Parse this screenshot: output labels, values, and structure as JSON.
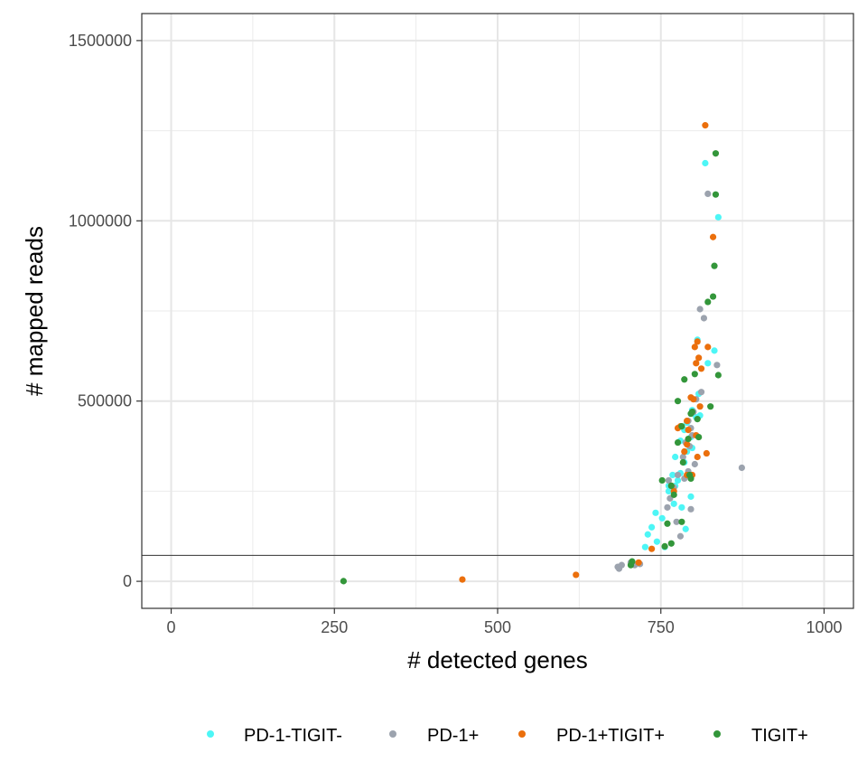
{
  "chart_data": {
    "type": "scatter",
    "title": "",
    "xlabel": "# detected genes",
    "ylabel": "# mapped reads",
    "xlim": [
      -45,
      1045
    ],
    "ylim": [
      -75000,
      1575000
    ],
    "x_ticks": [
      0,
      250,
      500,
      750,
      1000
    ],
    "x_tick_labels": [
      "0",
      "250",
      "500",
      "750",
      "1000"
    ],
    "y_ticks": [
      0,
      500000,
      1000000,
      1500000
    ],
    "y_tick_labels": [
      "0",
      "500000",
      "1000000",
      "1500000"
    ],
    "grid": true,
    "legend_position": "bottom",
    "hline": {
      "y": 72000,
      "color": "#333333"
    },
    "series": [
      {
        "name": "PD-1-TIGIT-",
        "color": "#4DF6F6",
        "points": [
          [
            818,
            1160000
          ],
          [
            838,
            1010000
          ],
          [
            832,
            640000
          ],
          [
            806,
            670000
          ],
          [
            822,
            605000
          ],
          [
            808,
            520000
          ],
          [
            798,
            475000
          ],
          [
            804,
            455000
          ],
          [
            786,
            420000
          ],
          [
            796,
            400000
          ],
          [
            780,
            390000
          ],
          [
            790,
            360000
          ],
          [
            798,
            370000
          ],
          [
            786,
            330000
          ],
          [
            780,
            300000
          ],
          [
            768,
            295000
          ],
          [
            776,
            280000
          ],
          [
            772,
            265000
          ],
          [
            762,
            250000
          ],
          [
            796,
            235000
          ],
          [
            770,
            215000
          ],
          [
            782,
            205000
          ],
          [
            742,
            190000
          ],
          [
            752,
            175000
          ],
          [
            736,
            150000
          ],
          [
            788,
            145000
          ],
          [
            730,
            130000
          ],
          [
            744,
            110000
          ],
          [
            726,
            95000
          ],
          [
            756,
            95000
          ],
          [
            762,
            265000
          ],
          [
            772,
            345000
          ],
          [
            810,
            460000
          ],
          [
            790,
            440000
          ]
        ]
      },
      {
        "name": "PD-1+",
        "color": "#9CA3AE",
        "points": [
          [
            822,
            1075000
          ],
          [
            810,
            755000
          ],
          [
            816,
            730000
          ],
          [
            836,
            600000
          ],
          [
            812,
            525000
          ],
          [
            804,
            505000
          ],
          [
            800,
            470000
          ],
          [
            792,
            445000
          ],
          [
            798,
            405000
          ],
          [
            788,
            385000
          ],
          [
            794,
            375000
          ],
          [
            784,
            345000
          ],
          [
            802,
            325000
          ],
          [
            792,
            305000
          ],
          [
            776,
            295000
          ],
          [
            786,
            285000
          ],
          [
            770,
            260000
          ],
          [
            764,
            230000
          ],
          [
            760,
            205000
          ],
          [
            796,
            200000
          ],
          [
            774,
            165000
          ],
          [
            780,
            125000
          ],
          [
            874,
            315000
          ],
          [
            684,
            40000
          ],
          [
            690,
            45000
          ],
          [
            686,
            35000
          ],
          [
            718,
            48000
          ],
          [
            704,
            52000
          ],
          [
            710,
            45000
          ],
          [
            762,
            280000
          ],
          [
            796,
            425000
          ]
        ]
      },
      {
        "name": "PD-1+TIGIT+",
        "color": "#EB6F0C",
        "points": [
          [
            818,
            1265000
          ],
          [
            830,
            955000
          ],
          [
            806,
            665000
          ],
          [
            822,
            650000
          ],
          [
            802,
            650000
          ],
          [
            808,
            620000
          ],
          [
            804,
            605000
          ],
          [
            812,
            590000
          ],
          [
            796,
            510000
          ],
          [
            800,
            505000
          ],
          [
            810,
            485000
          ],
          [
            790,
            445000
          ],
          [
            780,
            430000
          ],
          [
            776,
            425000
          ],
          [
            792,
            420000
          ],
          [
            804,
            405000
          ],
          [
            790,
            380000
          ],
          [
            786,
            360000
          ],
          [
            820,
            355000
          ],
          [
            806,
            345000
          ],
          [
            798,
            295000
          ],
          [
            790,
            295000
          ],
          [
            766,
            265000
          ],
          [
            770,
            250000
          ],
          [
            736,
            90000
          ],
          [
            446,
            5000
          ],
          [
            620,
            18000
          ],
          [
            716,
            52000
          ]
        ]
      },
      {
        "name": "TIGIT+",
        "color": "#33963A",
        "points": [
          [
            834,
            1187000
          ],
          [
            834,
            1073000
          ],
          [
            832,
            875000
          ],
          [
            830,
            790000
          ],
          [
            822,
            775000
          ],
          [
            838,
            572000
          ],
          [
            802,
            575000
          ],
          [
            786,
            560000
          ],
          [
            776,
            500000
          ],
          [
            826,
            485000
          ],
          [
            806,
            450000
          ],
          [
            798,
            470000
          ],
          [
            782,
            430000
          ],
          [
            792,
            395000
          ],
          [
            808,
            400000
          ],
          [
            776,
            385000
          ],
          [
            784,
            330000
          ],
          [
            796,
            285000
          ],
          [
            752,
            280000
          ],
          [
            766,
            265000
          ],
          [
            770,
            240000
          ],
          [
            760,
            160000
          ],
          [
            766,
            105000
          ],
          [
            782,
            165000
          ],
          [
            756,
            97000
          ],
          [
            706,
            55000
          ],
          [
            704,
            45000
          ],
          [
            264,
            500
          ],
          [
            794,
            295000
          ],
          [
            796,
            465000
          ]
        ]
      }
    ]
  },
  "legend": {
    "items": [
      {
        "label": "PD-1-TIGIT-",
        "color": "#4DF6F6"
      },
      {
        "label": "PD-1+",
        "color": "#9CA3AE"
      },
      {
        "label": "PD-1+TIGIT+",
        "color": "#EB6F0C"
      },
      {
        "label": "TIGIT+",
        "color": "#33963A"
      }
    ]
  }
}
